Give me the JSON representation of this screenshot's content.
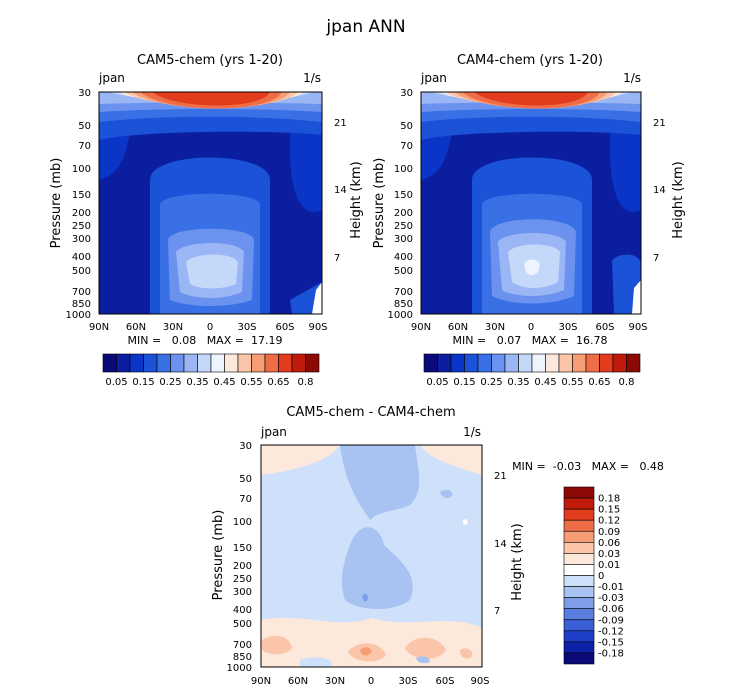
{
  "page": {
    "title": "jpan ANN"
  },
  "colors": {
    "main_scale": [
      "#0a0a7a",
      "#0c1ea0",
      "#0a35c6",
      "#1a52d8",
      "#3a70e6",
      "#6a92ee",
      "#9ab6f4",
      "#c4d8fa",
      "#eef4fe",
      "#fde8dc",
      "#fac5a8",
      "#f69d76",
      "#ef6d46",
      "#e23c1c",
      "#bf1a0a",
      "#8c0a05"
    ],
    "diff_scale": [
      "#8c0a05",
      "#bf1a0a",
      "#e23c1c",
      "#ef6d46",
      "#f69d76",
      "#fac5a8",
      "#fde8dc",
      "#ffffff",
      "#cfe0fa",
      "#a8c2f2",
      "#7e9ee8",
      "#5a7ee0",
      "#3a5ed6",
      "#1e3ec8",
      "#0c22a8",
      "#0a0a7a"
    ]
  },
  "chart_data": [
    {
      "id": "cam5",
      "type": "heatmap",
      "title": "CAM5-chem (yrs 1-20)",
      "left_label": "jpan",
      "right_label": "1/s",
      "xlabel": "",
      "ylabel": "Pressure (mb)",
      "y2label": "Height (km)",
      "x_ticks": [
        "90N",
        "60N",
        "30N",
        "0",
        "30S",
        "60S",
        "90S"
      ],
      "y_ticks": [
        "30",
        "50",
        "70",
        "100",
        "150",
        "200",
        "250",
        "300",
        "400",
        "500",
        "700",
        "850",
        "1000"
      ],
      "y2_ticks": [
        "21",
        "14",
        "7"
      ],
      "min_max_text": "MIN =   0.08   MAX =  17.19",
      "colorbar_labels": [
        "0.05",
        "0.15",
        "0.25",
        "0.35",
        "0.45",
        "0.55",
        "0.65",
        "0.8"
      ]
    },
    {
      "id": "cam4",
      "type": "heatmap",
      "title": "CAM4-chem (yrs 1-20)",
      "left_label": "jpan",
      "right_label": "1/s",
      "xlabel": "",
      "ylabel": "Pressure (mb)",
      "y2label": "Height (km)",
      "x_ticks": [
        "90N",
        "60N",
        "30N",
        "0",
        "30S",
        "60S",
        "90S"
      ],
      "y_ticks": [
        "30",
        "50",
        "70",
        "100",
        "150",
        "200",
        "250",
        "300",
        "400",
        "500",
        "700",
        "850",
        "1000"
      ],
      "y2_ticks": [
        "21",
        "14",
        "7"
      ],
      "min_max_text": "MIN =   0.07   MAX =  16.78",
      "colorbar_labels": [
        "0.05",
        "0.15",
        "0.25",
        "0.35",
        "0.45",
        "0.55",
        "0.65",
        "0.8"
      ]
    },
    {
      "id": "diff",
      "type": "heatmap",
      "title": "CAM5-chem - CAM4-chem",
      "left_label": "jpan",
      "right_label": "1/s",
      "xlabel": "",
      "ylabel": "Pressure (mb)",
      "y2label": "Height (km)",
      "x_ticks": [
        "90N",
        "60N",
        "30N",
        "0",
        "30S",
        "60S",
        "90S"
      ],
      "y_ticks": [
        "30",
        "50",
        "70",
        "100",
        "150",
        "200",
        "250",
        "300",
        "400",
        "500",
        "700",
        "850",
        "1000"
      ],
      "y2_ticks": [
        "21",
        "14",
        "7"
      ],
      "min_max_text": "MIN =  -0.03   MAX =   0.48",
      "colorbar_labels": [
        "0.18",
        "0.15",
        "0.12",
        "0.09",
        "0.06",
        "0.03",
        "0.01",
        "0",
        "-0.01",
        "-0.03",
        "-0.06",
        "-0.09",
        "-0.12",
        "-0.15",
        "-0.18"
      ]
    }
  ]
}
